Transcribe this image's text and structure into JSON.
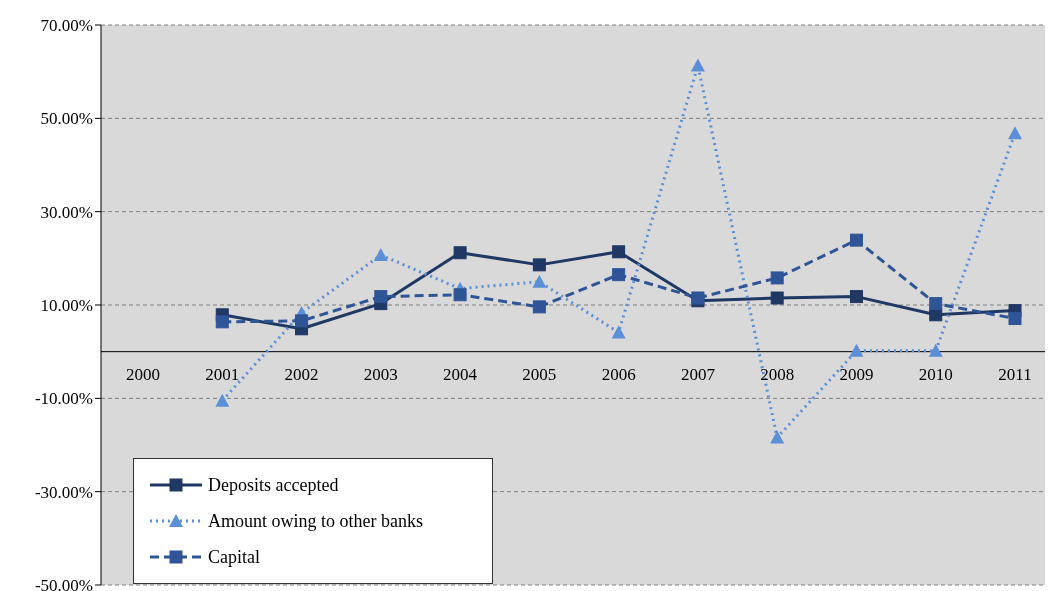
{
  "chart_data": {
    "type": "line",
    "categories": [
      "2000",
      "2001",
      "2002",
      "2003",
      "2004",
      "2005",
      "2006",
      "2007",
      "2008",
      "2009",
      "2010",
      "2011"
    ],
    "series": [
      {
        "name": "Deposits accepted",
        "color": "#1f3864",
        "marker": "square",
        "line_style": "solid",
        "values": [
          null,
          7.9,
          4.9,
          10.3,
          21.2,
          18.6,
          21.4,
          10.9,
          11.5,
          11.8,
          7.9,
          8.8
        ]
      },
      {
        "name": "Amount owing to other banks",
        "color": "#5b8fd6",
        "marker": "triangle",
        "line_style": "dotted",
        "values": [
          null,
          -10.5,
          8.3,
          20.7,
          13.5,
          15.0,
          4.1,
          61.3,
          -18.4,
          0.2,
          0.2,
          46.8
        ]
      },
      {
        "name": "Capital",
        "color": "#2f5597",
        "marker": "square",
        "line_style": "dashed",
        "values": [
          null,
          6.4,
          6.6,
          11.8,
          12.2,
          9.6,
          16.5,
          11.5,
          15.8,
          23.9,
          10.3,
          7.1
        ]
      }
    ],
    "ylim": [
      -50,
      70
    ],
    "yticks": [
      {
        "value": -50,
        "label": "-50.00%"
      },
      {
        "value": -30,
        "label": "-30.00%"
      },
      {
        "value": -10,
        "label": "-10.00%"
      },
      {
        "value": 10,
        "label": "10.00%"
      },
      {
        "value": 30,
        "label": "30.00%"
      },
      {
        "value": 50,
        "label": "50.00%"
      },
      {
        "value": 70,
        "label": "70.00%"
      }
    ],
    "grid": "y",
    "legend": "bottom left"
  }
}
